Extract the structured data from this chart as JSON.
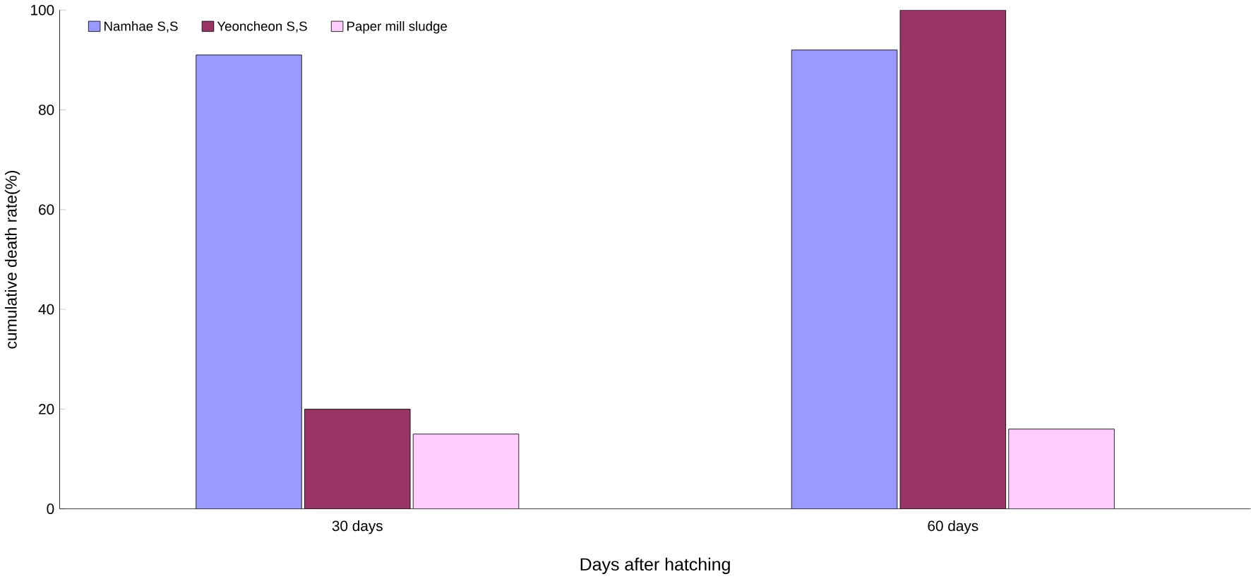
{
  "chart_data": {
    "type": "bar",
    "xlabel": "Days after hatching",
    "ylabel": "cumulative death rate(%)",
    "categories": [
      "30 days",
      "60 days"
    ],
    "series": [
      {
        "name": "Namhae S,S",
        "color": "#9999ff",
        "values": [
          91,
          92
        ]
      },
      {
        "name": "Yeoncheon S,S",
        "color": "#993366",
        "values": [
          20,
          100
        ]
      },
      {
        "name": "Paper mill sludge",
        "color": "#ffccff",
        "values": [
          15,
          16
        ]
      }
    ],
    "ylim": [
      0,
      100
    ],
    "yticks": [
      0,
      20,
      40,
      60,
      80,
      100
    ],
    "legend": "top left"
  }
}
